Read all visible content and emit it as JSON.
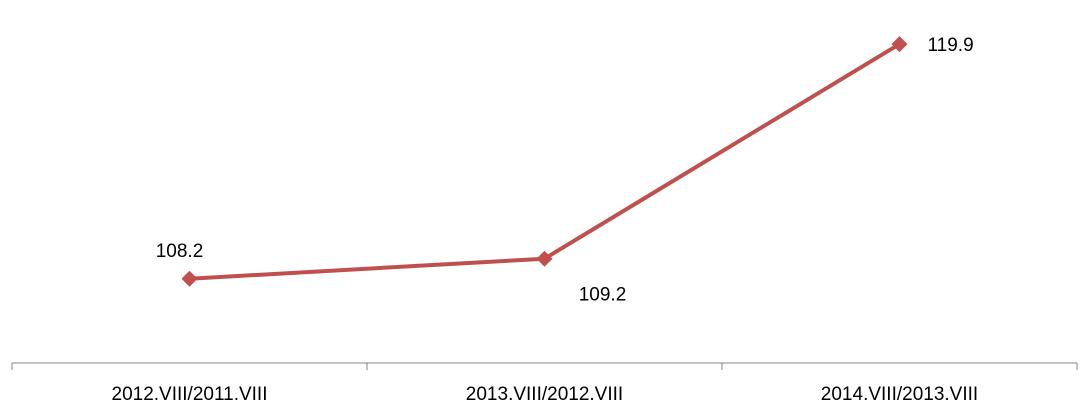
{
  "chart_data": {
    "type": "line",
    "title": "",
    "xlabel": "",
    "ylabel": "",
    "categories": [
      "2012.VIII/2011.VIII",
      "2013.VIII/2012.VIII",
      "2014.VIII/2013.VIII"
    ],
    "series": [
      {
        "values": [
          108.2,
          109.2,
          119.9
        ],
        "labels": [
          "108.2",
          "109.2",
          "119.9"
        ],
        "color": "#C0504D",
        "marker": "diamond"
      }
    ],
    "ylim": [
      104,
      121
    ],
    "grid": false,
    "legend": "none",
    "axis_color": "#868686"
  }
}
